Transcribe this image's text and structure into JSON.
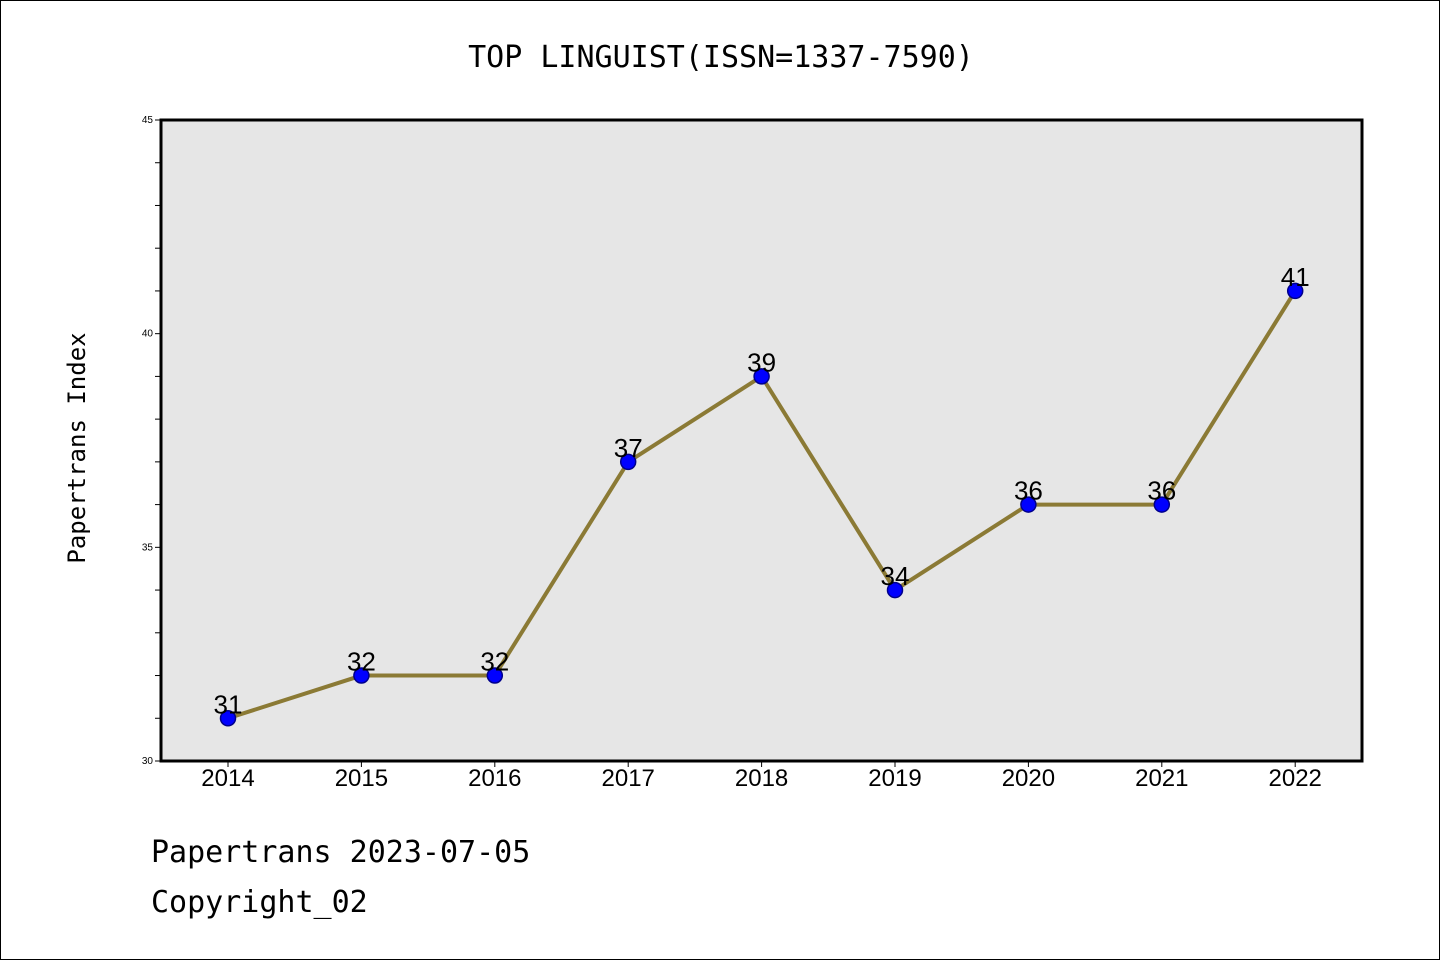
{
  "chart_data": {
    "type": "line",
    "title": "TOP LINGUIST(ISSN=1337-7590)",
    "xlabel": "",
    "ylabel": "Papertrans Index",
    "categories": [
      "2014",
      "2015",
      "2016",
      "2017",
      "2018",
      "2019",
      "2020",
      "2021",
      "2022"
    ],
    "series": [
      {
        "values": [
          31,
          32,
          32,
          37,
          39,
          34,
          36,
          36,
          41
        ]
      }
    ],
    "data_labels": [
      "31",
      "32",
      "32",
      "37",
      "39",
      "34",
      "36",
      "36",
      "41"
    ],
    "ylim": [
      30,
      45
    ],
    "yticks": [
      "30",
      "35",
      "40",
      "45"
    ],
    "grid": false,
    "legend": "none",
    "colors": {
      "line": "#8b7a35",
      "marker_fill": "#0000ff",
      "marker_edge": "#00008b",
      "plot_background": "#e6e6e6",
      "page_background": "#ffffff"
    }
  },
  "footer": {
    "line1": "Papertrans 2023-07-05",
    "line2": "Copyright_02"
  }
}
